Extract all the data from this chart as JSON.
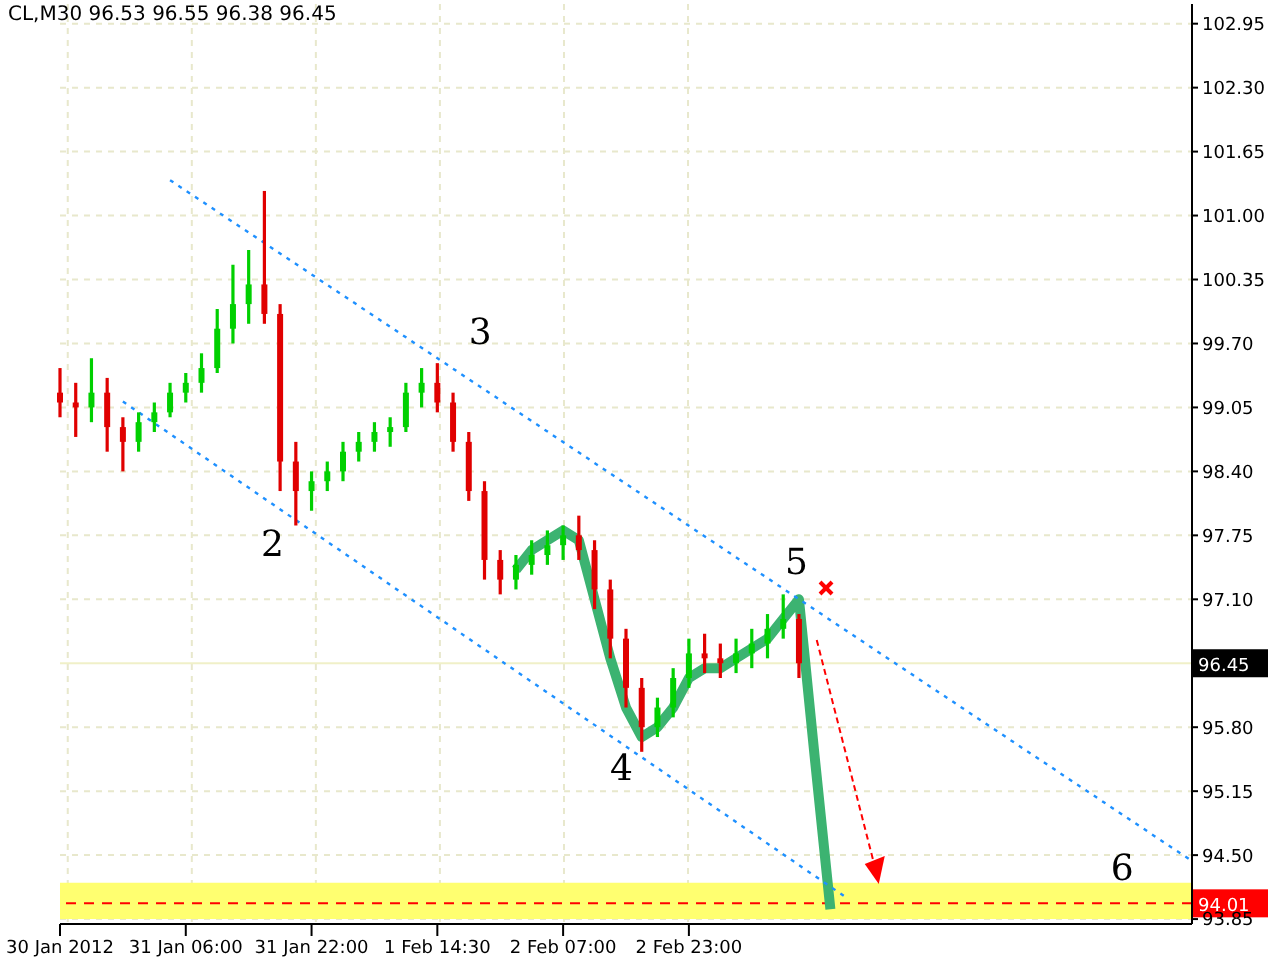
{
  "chart_data": {
    "type": "candlestick",
    "title": "CL,M30 96.53 96.55 96.38 96.45",
    "categories": [
      "30 Jan 2012",
      null,
      null,
      null,
      null,
      null,
      null,
      null,
      "31 Jan 06:00",
      null,
      null,
      null,
      null,
      null,
      null,
      null,
      "31 Jan 22:00",
      null,
      null,
      null,
      null,
      null,
      null,
      null,
      "1 Feb 14:30",
      null,
      null,
      null,
      null,
      null,
      null,
      null,
      "2 Feb 07:00",
      null,
      null,
      null,
      null,
      null,
      null,
      null,
      "2 Feb 23:00",
      null,
      null,
      null,
      null,
      null,
      null,
      null,
      null,
      null,
      null,
      null,
      null,
      null,
      null,
      null,
      null,
      null,
      null,
      null,
      null,
      null,
      null,
      null,
      null,
      null,
      null,
      null,
      null,
      null,
      null,
      null,
      null
    ],
    "ohlc": [
      [
        99.2,
        99.45,
        98.95,
        99.1
      ],
      [
        99.1,
        99.3,
        98.75,
        99.05
      ],
      [
        99.05,
        99.55,
        98.9,
        99.2
      ],
      [
        99.2,
        99.35,
        98.6,
        98.85
      ],
      [
        98.85,
        98.95,
        98.4,
        98.7
      ],
      [
        98.7,
        99.0,
        98.6,
        98.9
      ],
      [
        98.9,
        99.1,
        98.8,
        99.0
      ],
      [
        99.0,
        99.3,
        98.95,
        99.2
      ],
      [
        99.2,
        99.4,
        99.1,
        99.3
      ],
      [
        99.3,
        99.6,
        99.2,
        99.45
      ],
      [
        99.45,
        100.05,
        99.4,
        99.85
      ],
      [
        99.85,
        100.5,
        99.7,
        100.1
      ],
      [
        100.1,
        100.65,
        99.9,
        100.3
      ],
      [
        100.3,
        101.25,
        99.9,
        100.0
      ],
      [
        100.0,
        100.1,
        98.2,
        98.5
      ],
      [
        98.5,
        98.7,
        97.85,
        98.2
      ],
      [
        98.2,
        98.4,
        98.0,
        98.3
      ],
      [
        98.3,
        98.5,
        98.2,
        98.4
      ],
      [
        98.4,
        98.7,
        98.3,
        98.6
      ],
      [
        98.6,
        98.8,
        98.5,
        98.7
      ],
      [
        98.7,
        98.9,
        98.6,
        98.8
      ],
      [
        98.8,
        98.95,
        98.65,
        98.85
      ],
      [
        98.85,
        99.3,
        98.8,
        99.2
      ],
      [
        99.2,
        99.45,
        99.05,
        99.3
      ],
      [
        99.3,
        99.5,
        99.0,
        99.1
      ],
      [
        99.1,
        99.2,
        98.6,
        98.7
      ],
      [
        98.7,
        98.8,
        98.1,
        98.2
      ],
      [
        98.2,
        98.3,
        97.3,
        97.5
      ],
      [
        97.5,
        97.6,
        97.15,
        97.3
      ],
      [
        97.3,
        97.55,
        97.2,
        97.45
      ],
      [
        97.45,
        97.7,
        97.35,
        97.55
      ],
      [
        97.55,
        97.8,
        97.45,
        97.65
      ],
      [
        97.65,
        97.85,
        97.5,
        97.75
      ],
      [
        97.75,
        97.95,
        97.5,
        97.6
      ],
      [
        97.6,
        97.7,
        97.0,
        97.2
      ],
      [
        97.2,
        97.3,
        96.5,
        96.7
      ],
      [
        96.7,
        96.8,
        96.0,
        96.2
      ],
      [
        96.2,
        96.3,
        95.55,
        95.8
      ],
      [
        95.8,
        96.1,
        95.7,
        96.0
      ],
      [
        96.0,
        96.4,
        95.9,
        96.3
      ],
      [
        96.3,
        96.7,
        96.2,
        96.55
      ],
      [
        96.55,
        96.75,
        96.35,
        96.5
      ],
      [
        96.5,
        96.65,
        96.3,
        96.45
      ],
      [
        96.45,
        96.7,
        96.35,
        96.55
      ],
      [
        96.55,
        96.8,
        96.4,
        96.65
      ],
      [
        96.65,
        96.95,
        96.5,
        96.8
      ],
      [
        96.8,
        97.15,
        96.7,
        96.9
      ],
      [
        96.9,
        96.95,
        96.3,
        96.45
      ],
      null,
      null,
      null,
      null,
      null,
      null,
      null,
      null,
      null,
      null,
      null,
      null,
      null,
      null,
      null,
      null,
      null,
      null,
      null,
      null,
      null,
      null,
      null,
      null,
      null
    ],
    "colors": [
      "#e00000",
      "#e00000",
      "#00d000",
      "#e00000",
      "#e00000",
      "#00d000",
      "#00d000",
      "#00d000",
      "#00d000",
      "#00d000",
      "#00d000",
      "#00d000",
      "#00d000",
      "#e00000",
      "#e00000",
      "#e00000",
      "#00d000",
      "#00d000",
      "#00d000",
      "#00d000",
      "#00d000",
      "#00d000",
      "#00d000",
      "#00d000",
      "#e00000",
      "#e00000",
      "#e00000",
      "#e00000",
      "#e00000",
      "#00d000",
      "#00d000",
      "#00d000",
      "#00d000",
      "#e00000",
      "#e00000",
      "#e00000",
      "#e00000",
      "#e00000",
      "#00d000",
      "#00d000",
      "#00d000",
      "#e00000",
      "#e00000",
      "#00d000",
      "#00d000",
      "#00d000",
      "#00d000",
      "#e00000",
      null,
      null,
      null,
      null,
      null,
      null,
      null,
      null,
      null,
      null,
      null,
      null,
      null,
      null,
      null,
      null,
      null,
      null,
      null,
      null,
      null,
      null,
      null,
      null,
      null
    ],
    "series": [
      {
        "type": "line",
        "color": "#3cb371",
        "values": [
          null,
          null,
          null,
          null,
          null,
          null,
          null,
          null,
          null,
          null,
          null,
          null,
          null,
          null,
          null,
          null,
          null,
          null,
          null,
          null,
          null,
          null,
          null,
          null,
          null,
          null,
          null,
          null,
          null,
          97.4,
          97.6,
          97.7,
          97.8,
          97.7,
          97.1,
          96.5,
          96.0,
          95.7,
          95.8,
          96.0,
          96.3,
          96.4,
          96.4,
          96.5,
          96.6,
          96.7,
          96.9,
          97.1,
          95.5,
          93.95,
          null,
          null,
          null,
          null,
          null,
          null,
          null,
          null,
          null,
          null,
          null,
          null,
          null,
          null,
          null,
          null,
          null,
          null,
          null,
          null,
          null,
          null,
          null
        ]
      },
      {
        "type": "line",
        "color": "#1e90ff",
        "line_style": "dotted",
        "values": [
          null,
          null,
          null,
          null,
          null,
          null,
          null,
          101.36,
          null,
          null,
          null,
          null,
          null,
          null,
          null,
          null,
          null,
          null,
          null,
          null,
          null,
          null,
          null,
          null,
          null,
          null,
          null,
          null,
          null,
          null,
          null,
          null,
          null,
          null,
          null,
          null,
          null,
          null,
          null,
          null,
          null,
          null,
          null,
          null,
          null,
          null,
          null,
          null,
          null,
          null,
          null,
          null,
          null,
          null,
          null,
          null,
          null,
          null,
          null,
          null,
          null,
          null,
          null,
          null,
          null,
          null,
          null,
          null,
          null,
          null,
          null,
          null,
          94.44
        ]
      },
      {
        "type": "line",
        "color": "#1e90ff",
        "line_style": "dotted",
        "values": [
          null,
          null,
          null,
          null,
          99.11,
          null,
          null,
          null,
          null,
          null,
          null,
          null,
          null,
          null,
          null,
          null,
          null,
          null,
          null,
          null,
          null,
          null,
          null,
          null,
          null,
          null,
          null,
          null,
          null,
          null,
          null,
          null,
          null,
          null,
          null,
          null,
          null,
          null,
          null,
          null,
          null,
          null,
          null,
          null,
          null,
          null,
          null,
          null,
          null,
          null,
          94.07,
          null,
          null,
          null,
          null,
          null,
          null,
          null,
          null,
          null,
          null,
          null,
          null,
          null,
          null,
          null,
          null,
          null,
          null,
          null,
          null,
          null,
          null
        ]
      }
    ],
    "ylim": [
      93.8,
      103.15
    ],
    "yticks": [
      {
        "value": 102.95,
        "label": "102.95"
      },
      {
        "value": 102.3,
        "label": "102.30"
      },
      {
        "value": 101.65,
        "label": "101.65"
      },
      {
        "value": 101.0,
        "label": "101.00"
      },
      {
        "value": 100.35,
        "label": "100.35"
      },
      {
        "value": 99.7,
        "label": "99.70"
      },
      {
        "value": 99.05,
        "label": "99.05"
      },
      {
        "value": 98.4,
        "label": "98.40"
      },
      {
        "value": 97.75,
        "label": "97.75"
      },
      {
        "value": 97.1,
        "label": "97.10"
      },
      {
        "value": 95.8,
        "label": "95.80"
      },
      {
        "value": 95.15,
        "label": "95.15"
      },
      {
        "value": 94.5,
        "label": "94.50"
      },
      {
        "value": 93.85,
        "label": "93.85"
      }
    ],
    "ref_lines": [
      {
        "axis": "y",
        "value": 96.45,
        "label": "96.45",
        "color": "#f0f0c8",
        "line_style": "solid"
      },
      {
        "axis": "y",
        "value": 94.01,
        "label": "94.01",
        "color": "#ff0000",
        "line_style": "dashed"
      }
    ],
    "bands": [
      {
        "axis": "y",
        "from": 93.85,
        "to": 94.22,
        "color": "#ffff70"
      }
    ],
    "annotations": [
      "2",
      "3",
      "4",
      "5",
      "6"
    ],
    "grid": true,
    "legend": false
  }
}
